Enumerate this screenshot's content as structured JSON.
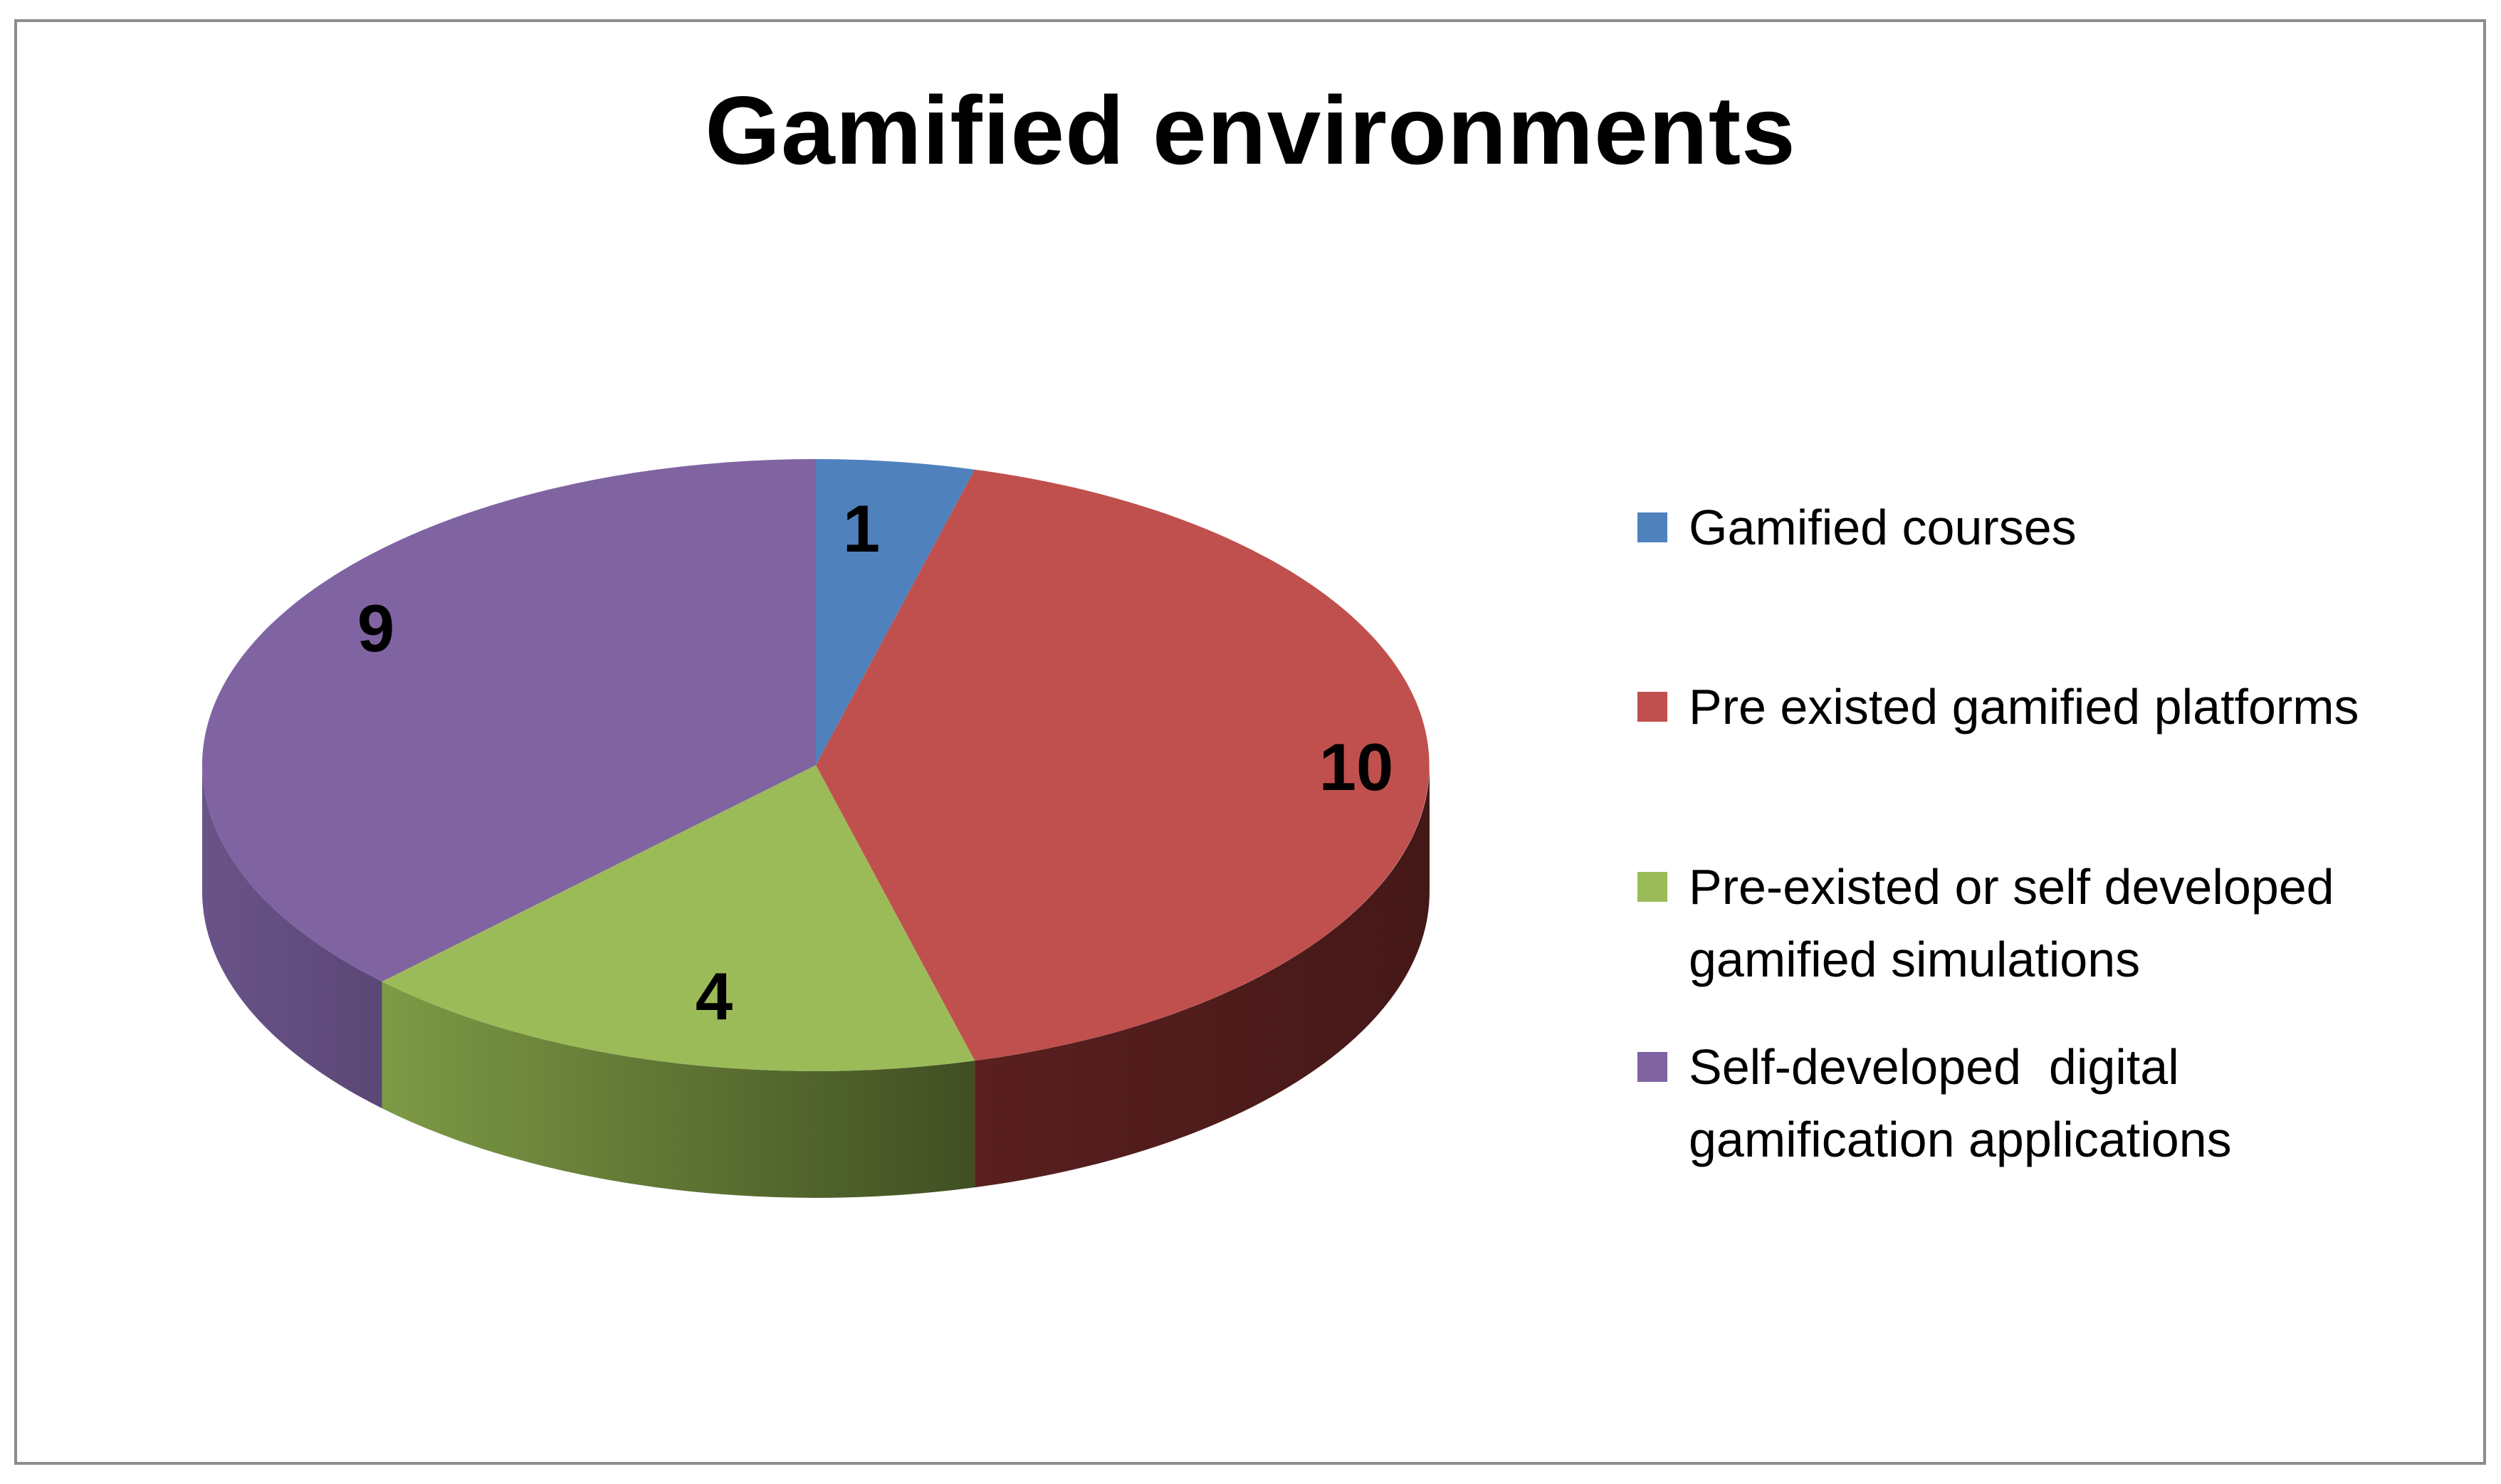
{
  "chart_data": {
    "type": "pie",
    "title": "Gamified environments",
    "categories": [
      "Gamified courses",
      "Pre existed gamified platforms",
      "Pre-existed or self developed gamified simulations",
      "Self-developed  digital gamification applications"
    ],
    "values": [
      1,
      10,
      4,
      9
    ],
    "data_labels": [
      "1",
      "10",
      "4",
      "9"
    ],
    "colors": [
      "#4f81bd",
      "#c0504d",
      "#9bbb59",
      "#8064a2"
    ],
    "legend_position": "right",
    "three_d": true
  },
  "legend": {
    "items": [
      {
        "lines": [
          "Gamified courses"
        ],
        "color": "#4f81bd"
      },
      {
        "lines": [
          "Pre existed gamified platforms"
        ],
        "color": "#c0504d"
      },
      {
        "lines": [
          "Pre-existed or self developed",
          "gamified simulations"
        ],
        "color": "#9bbb59"
      },
      {
        "lines": [
          "Self-developed  digital",
          "gamification applications"
        ],
        "color": "#8064a2"
      }
    ]
  }
}
